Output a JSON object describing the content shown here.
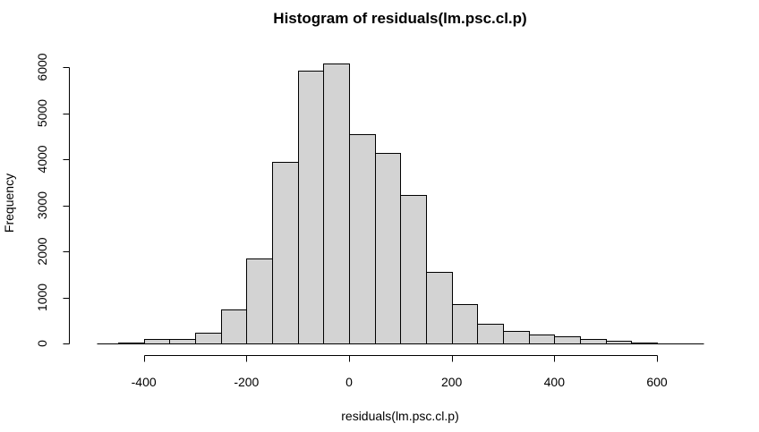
{
  "chart_data": {
    "type": "bar",
    "title": "Histogram of residuals(lm.psc.cl.p)",
    "xlabel": "residuals(lm.psc.cl.p)",
    "ylabel": "Frequency",
    "bin_width": 50,
    "bins": [
      {
        "start": -450,
        "end": -400,
        "value": 10
      },
      {
        "start": -400,
        "end": -350,
        "value": 100
      },
      {
        "start": -350,
        "end": -300,
        "value": 90
      },
      {
        "start": -300,
        "end": -250,
        "value": 240
      },
      {
        "start": -250,
        "end": -200,
        "value": 730
      },
      {
        "start": -200,
        "end": -150,
        "value": 1850
      },
      {
        "start": -150,
        "end": -100,
        "value": 3950
      },
      {
        "start": -100,
        "end": -50,
        "value": 5920
      },
      {
        "start": -50,
        "end": 0,
        "value": 6080
      },
      {
        "start": 0,
        "end": 50,
        "value": 4550
      },
      {
        "start": 50,
        "end": 100,
        "value": 4130
      },
      {
        "start": 100,
        "end": 150,
        "value": 3230
      },
      {
        "start": 150,
        "end": 200,
        "value": 1560
      },
      {
        "start": 200,
        "end": 250,
        "value": 860
      },
      {
        "start": 250,
        "end": 300,
        "value": 430
      },
      {
        "start": 300,
        "end": 350,
        "value": 270
      },
      {
        "start": 350,
        "end": 400,
        "value": 190
      },
      {
        "start": 400,
        "end": 450,
        "value": 150
      },
      {
        "start": 450,
        "end": 500,
        "value": 100
      },
      {
        "start": 500,
        "end": 550,
        "value": 55
      },
      {
        "start": 550,
        "end": 600,
        "value": 15
      },
      {
        "start": 600,
        "end": 650,
        "value": 5
      }
    ],
    "x_ticks": [
      -400,
      -200,
      0,
      200,
      400,
      600
    ],
    "y_ticks": [
      0,
      1000,
      2000,
      3000,
      4000,
      5000,
      6000
    ],
    "xlim": [
      -500,
      700
    ],
    "ylim": [
      0,
      6100
    ],
    "grid": false
  }
}
